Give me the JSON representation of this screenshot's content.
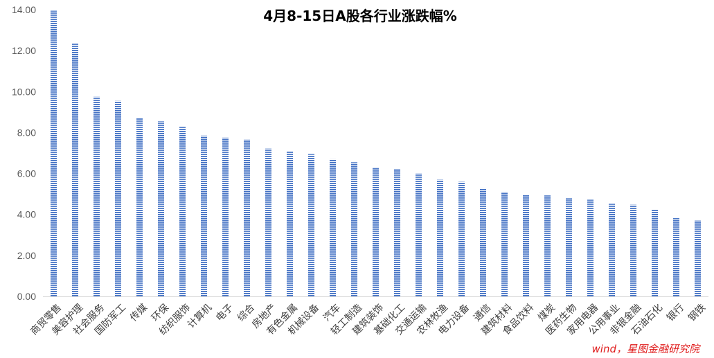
{
  "chart_data": {
    "type": "bar",
    "title": "4月8-15日A股各行业涨跌幅%",
    "xlabel": "",
    "ylabel": "",
    "ylim": [
      0,
      14
    ],
    "yticks": [
      "0.00",
      "2.00",
      "4.00",
      "6.00",
      "8.00",
      "10.00",
      "12.00",
      "14.00"
    ],
    "categories": [
      "商贸零售",
      "美容护理",
      "社会服务",
      "国防军工",
      "传媒",
      "环保",
      "纺织服饰",
      "计算机",
      "电子",
      "综合",
      "房地产",
      "有色金属",
      "机械设备",
      "汽车",
      "轻工制造",
      "建筑装饰",
      "基础化工",
      "交通运输",
      "农林牧渔",
      "电力设备",
      "通信",
      "建筑材料",
      "食品饮料",
      "煤炭",
      "医药生物",
      "家用电器",
      "公用事业",
      "非银金融",
      "石油石化",
      "银行",
      "钢铁"
    ],
    "values": [
      13.95,
      12.35,
      9.75,
      9.55,
      8.72,
      8.55,
      8.28,
      7.85,
      7.75,
      7.65,
      7.22,
      7.1,
      6.95,
      6.7,
      6.55,
      6.3,
      6.22,
      6.0,
      5.7,
      5.6,
      5.28,
      5.1,
      4.95,
      4.93,
      4.8,
      4.72,
      4.52,
      4.48,
      4.25,
      3.82,
      3.7
    ],
    "bar_color": "#4472c4",
    "grid": false,
    "legend": "none"
  },
  "source_note": "wind，星图金融研究院"
}
